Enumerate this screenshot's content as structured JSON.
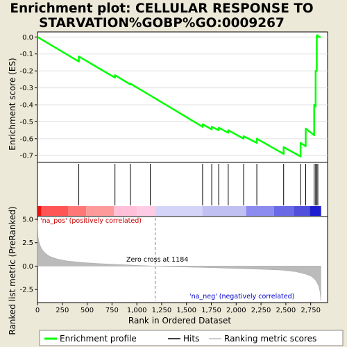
{
  "chart_data": {
    "type": "line",
    "title_line1": "Enrichment plot: CELLULAR RESPONSE TO",
    "title_line2": "STARVATION%GOBP%GO:0009267",
    "es_panel": {
      "ylabel": "Enrichment score (ES)",
      "ylim": [
        -0.74,
        0.03
      ],
      "yticks": [
        "0.0",
        "-0.1",
        "-0.2",
        "-0.3",
        "-0.4",
        "-0.5",
        "-0.6",
        "-0.7"
      ],
      "ytick_values": [
        0.0,
        -0.1,
        -0.2,
        -0.3,
        -0.4,
        -0.5,
        -0.6,
        -0.7
      ],
      "series": [
        {
          "name": "Enrichment profile",
          "color": "#00FF00",
          "x": [
            0,
            416,
            416,
            780,
            780,
            935,
            935,
            1136,
            1136,
            1662,
            1662,
            1754,
            1754,
            1824,
            1824,
            1920,
            1920,
            2075,
            2075,
            2208,
            2208,
            2478,
            2478,
            2648,
            2648,
            2700,
            2700,
            2785,
            2785,
            2800,
            2800,
            2812,
            2812,
            2822,
            2822,
            2850
          ],
          "y": [
            0.0,
            -0.145,
            -0.115,
            -0.24,
            -0.225,
            -0.28,
            -0.275,
            -0.345,
            -0.345,
            -0.53,
            -0.515,
            -0.545,
            -0.53,
            -0.55,
            -0.535,
            -0.565,
            -0.55,
            -0.6,
            -0.585,
            -0.625,
            -0.6,
            -0.69,
            -0.65,
            -0.705,
            -0.625,
            -0.645,
            -0.54,
            -0.58,
            -0.4,
            -0.41,
            -0.2,
            -0.2,
            0.01,
            0.01,
            0.0,
            0.0
          ]
        }
      ]
    },
    "hits": {
      "name": "Hits",
      "positions": [
        416,
        780,
        935,
        1136,
        1662,
        1754,
        1824,
        1920,
        2075,
        2208,
        2478,
        2648,
        2700,
        2785,
        2800,
        2812,
        2822
      ]
    },
    "rank_metric_panel": {
      "ylabel": "Ranked list metric (PreRanked)",
      "xlabel": "Rank in Ordered Dataset",
      "ylim": [
        -3.9,
        5.3
      ],
      "yticks": [
        "5.0",
        "2.5",
        "0.0",
        "-2.5"
      ],
      "ytick_values": [
        5.0,
        2.5,
        0.0,
        -2.5
      ],
      "xlim": [
        0,
        2920
      ],
      "xticks": [
        "0",
        "250",
        "500",
        "750",
        "1,000",
        "1,250",
        "1,500",
        "1,750",
        "2,000",
        "2,250",
        "2,500",
        "2,750"
      ],
      "xtick_values": [
        0,
        250,
        500,
        750,
        1000,
        1250,
        1500,
        1750,
        2000,
        2250,
        2500,
        2750
      ],
      "zero_cross": 1184,
      "zero_cross_label": "Zero cross at 1184",
      "pos_label": "'na_pos' (positively correlated)",
      "neg_label": "'na_neg' (negatively correlated)",
      "pos_label_color": "#CC0000",
      "neg_label_color": "#0000CC",
      "metric_points": [
        [
          0,
          4.9
        ],
        [
          5,
          3.2
        ],
        [
          15,
          2.6
        ],
        [
          30,
          2.1
        ],
        [
          50,
          1.7
        ],
        [
          80,
          1.35
        ],
        [
          120,
          1.05
        ],
        [
          200,
          0.75
        ],
        [
          300,
          0.55
        ],
        [
          450,
          0.38
        ],
        [
          600,
          0.28
        ],
        [
          800,
          0.18
        ],
        [
          1000,
          0.08
        ],
        [
          1184,
          0.0
        ],
        [
          1400,
          -0.08
        ],
        [
          1700,
          -0.15
        ],
        [
          2000,
          -0.25
        ],
        [
          2250,
          -0.33
        ],
        [
          2450,
          -0.42
        ],
        [
          2600,
          -0.6
        ],
        [
          2700,
          -0.85
        ],
        [
          2760,
          -1.1
        ],
        [
          2800,
          -1.5
        ],
        [
          2830,
          -2.1
        ],
        [
          2845,
          -2.8
        ],
        [
          2852,
          -3.7
        ]
      ]
    },
    "heatmap_bar": {
      "segments": [
        {
          "from": 0,
          "to": 40,
          "color": "#EE1111"
        },
        {
          "from": 40,
          "to": 310,
          "color": "#FF5555"
        },
        {
          "from": 310,
          "to": 490,
          "color": "#FF7777"
        },
        {
          "from": 490,
          "to": 770,
          "color": "#FF9A9A"
        },
        {
          "from": 770,
          "to": 1000,
          "color": "#FFC0D8"
        },
        {
          "from": 1000,
          "to": 1184,
          "color": "#FFCCE6"
        },
        {
          "from": 1184,
          "to": 1660,
          "color": "#D4D4F8"
        },
        {
          "from": 1660,
          "to": 2100,
          "color": "#C0C0F2"
        },
        {
          "from": 2100,
          "to": 2380,
          "color": "#8C8CF0"
        },
        {
          "from": 2380,
          "to": 2580,
          "color": "#6A6AE6"
        },
        {
          "from": 2580,
          "to": 2740,
          "color": "#5050DD"
        },
        {
          "from": 2740,
          "to": 2855,
          "color": "#1E1ED0"
        }
      ]
    },
    "legend": [
      {
        "name": "Enrichment profile",
        "color": "#00FF00"
      },
      {
        "name": "Hits",
        "color": "#000000"
      },
      {
        "name": "Ranking metric scores",
        "color": "#BBBBBB"
      }
    ]
  }
}
